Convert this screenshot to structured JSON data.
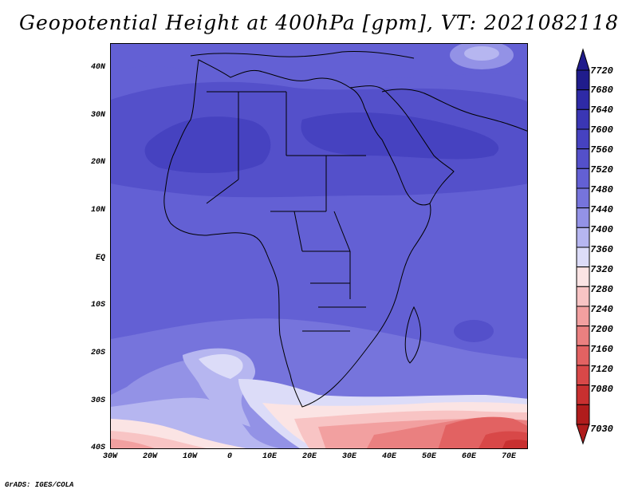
{
  "title": "Geopotential Height at 400hPa [gpm], VT: 2021082118",
  "credit": "GrADS: IGES/COLA",
  "map": {
    "lat_labels": [
      "40N",
      "30N",
      "20N",
      "10N",
      "EQ",
      "10S",
      "20S",
      "30S",
      "40S"
    ],
    "lon_labels": [
      "30W",
      "20W",
      "10W",
      "0",
      "10E",
      "20E",
      "30E",
      "40E",
      "50E",
      "60E",
      "70E"
    ],
    "lat_range": [
      -40,
      45
    ],
    "lon_range": [
      -30,
      75
    ]
  },
  "colorbar": {
    "levels": [
      "7720",
      "7680",
      "7640",
      "7600",
      "7560",
      "7520",
      "7480",
      "7440",
      "7400",
      "7360",
      "7320",
      "7280",
      "7240",
      "7200",
      "7160",
      "7120",
      "7080",
      "7030"
    ],
    "colors": [
      "#201c8c",
      "#2e2aa6",
      "#3a36b4",
      "#4642c0",
      "#5450ca",
      "#6360d4",
      "#7674dc",
      "#9392e6",
      "#b6b6f0",
      "#dcdcf8",
      "#fbe4e4",
      "#f8c4c4",
      "#f2a0a0",
      "#ea8080",
      "#e26262",
      "#d84848",
      "#c83030",
      "#b01c1c"
    ]
  }
}
